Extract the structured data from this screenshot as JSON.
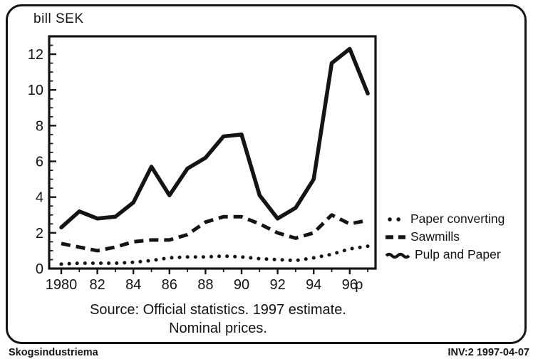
{
  "chart": {
    "unit_label": "bill SEK"
  },
  "caption": {
    "line1": "Source: Official statistics. 1997 estimate.",
    "line2": "Nominal prices."
  },
  "footer": {
    "left": "Skogsindustriema",
    "right": "INV:2  1997-04-07"
  },
  "colors": {
    "ink": "#141414",
    "background": "#ffffff"
  },
  "chart_data": {
    "type": "line",
    "title": "bill SEK",
    "xlabel": "",
    "ylabel": "bill SEK",
    "x": [
      1980,
      1981,
      1982,
      1983,
      1984,
      1985,
      1986,
      1987,
      1988,
      1989,
      1990,
      1991,
      1992,
      1993,
      1994,
      1995,
      1996,
      1997
    ],
    "x_tick_labels": [
      "1980",
      "82",
      "84",
      "86",
      "88",
      "90",
      "92",
      "94",
      "96",
      "p"
    ],
    "ylim": [
      0,
      13
    ],
    "y_ticks": [
      0,
      2,
      4,
      6,
      8,
      10,
      12
    ],
    "y_minor_step": 0.5,
    "grid": false,
    "legend_position": "right-of-plot",
    "series": [
      {
        "name": "Paper converting",
        "line_style": "dotted",
        "values": [
          0.25,
          0.3,
          0.3,
          0.3,
          0.35,
          0.45,
          0.6,
          0.65,
          0.65,
          0.7,
          0.65,
          0.55,
          0.5,
          0.45,
          0.6,
          0.8,
          1.1,
          1.25
        ]
      },
      {
        "name": "Sawmills",
        "line_style": "dashed",
        "values": [
          1.4,
          1.2,
          1.0,
          1.2,
          1.5,
          1.6,
          1.6,
          1.9,
          2.6,
          2.9,
          2.9,
          2.5,
          2.0,
          1.7,
          2.0,
          3.0,
          2.5,
          2.7
        ]
      },
      {
        "name": "Pulp and Paper",
        "line_style": "solid",
        "values": [
          2.3,
          3.2,
          2.8,
          2.9,
          3.7,
          5.7,
          4.1,
          5.6,
          6.2,
          7.4,
          7.5,
          4.1,
          2.8,
          3.4,
          5.0,
          11.5,
          12.3,
          9.8
        ]
      }
    ]
  }
}
